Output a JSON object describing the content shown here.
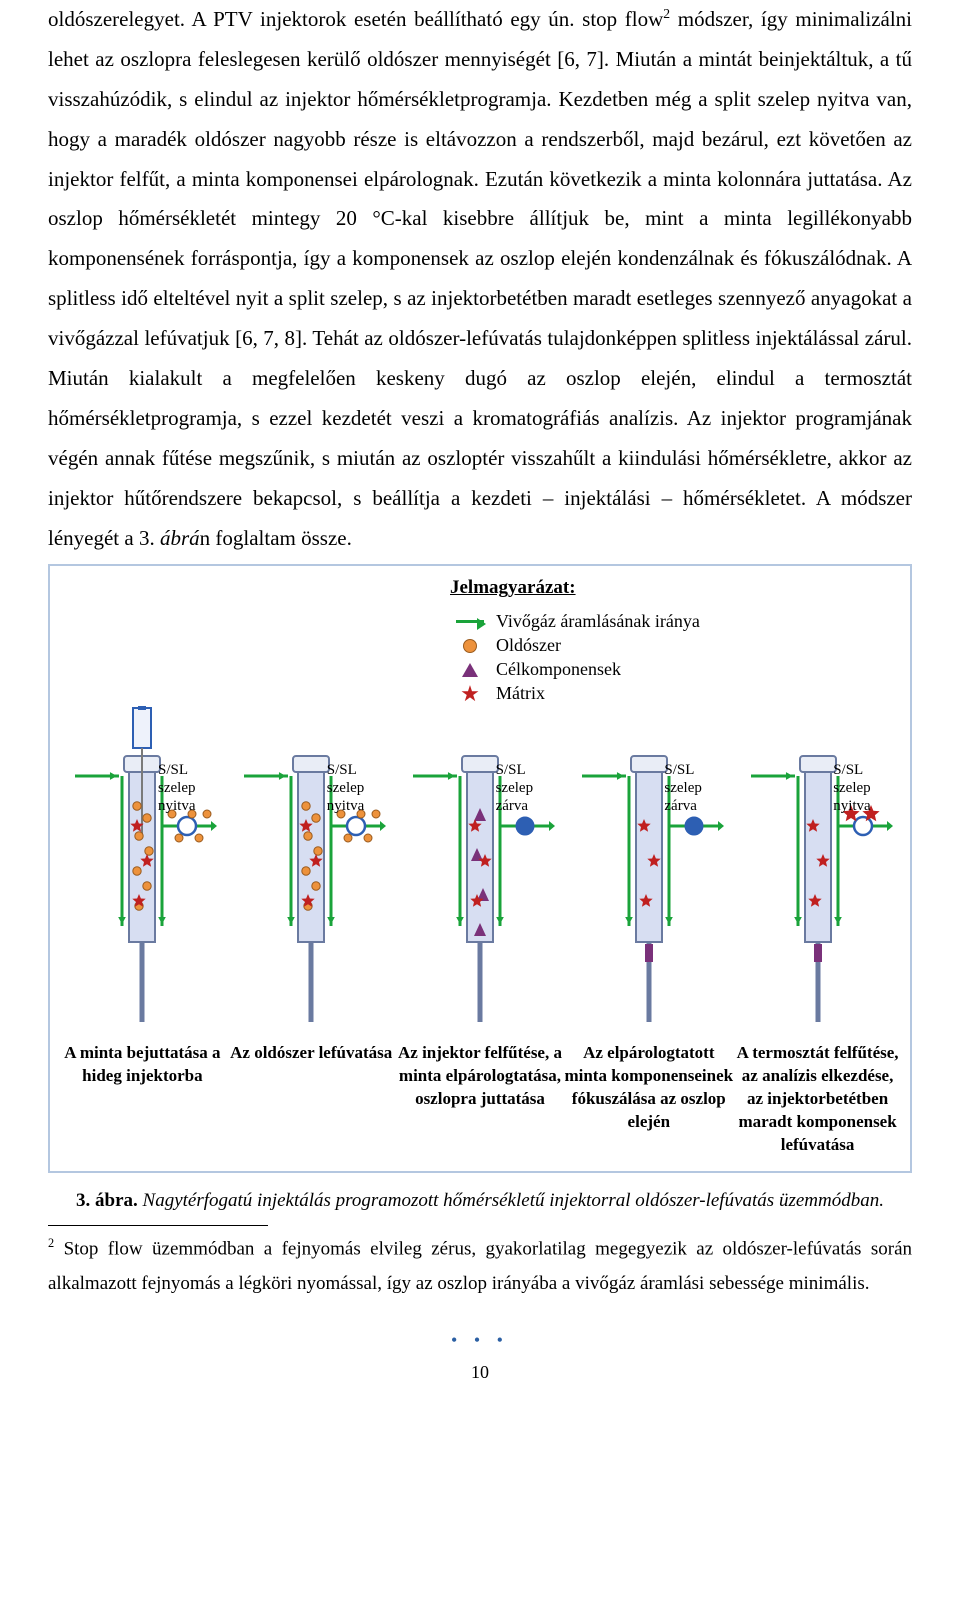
{
  "paragraph_html": "oldószerelegyet. A PTV injektorok esetén beállítható egy ún. stop flow<span class=\"sup\">2</span> módszer, így minimalizálni lehet az oszlopra feleslegesen kerülő oldószer mennyiségét [6, 7]. Miután a mintát beinjektáltuk, a tű visszahúzódik, s elindul az injektor hőmérsékletprogramja. Kezdetben még a split szelep nyitva van, hogy a maradék oldószer nagyobb része is eltávozzon a rendszerből, majd bezárul, ezt követően az injektor felfűt, a minta komponensei elpárolognak. Ezután következik a minta kolonnára juttatása. Az oszlop hőmérsékletét mintegy 20 °C-kal kisebbre állítjuk be, mint a minta legillékonyabb komponensének forráspontja, így a komponensek az oszlop elején kondenzálnak és fókuszálódnak. A splitless idő elteltével nyit a split szelep, s az injektorbetétben maradt esetleges szennyező anyagokat a vivőgázzal lefúvatjuk [6, 7, 8]. Tehát az oldószer-lefúvatás tulajdonképpen splitless injektálással zárul. Miután kialakult a megfelelően keskeny dugó az oszlop elején, elindul a termosztát hőmérsékletprogramja, s ezzel kezdetét veszi a kromatográfiás analízis. Az injektor programjának végén annak fűtése megszűnik, s miután az oszloptér visszahűlt a kiindulási hőmérsékletre, akkor az injektor hűtőrendszere bekapcsol, s beállítja a kezdeti – injektálási – hőmérsékletet. A módszer lényegét a 3. <span class=\"ital\">ábrá</span>n foglaltam össze.",
  "figure": {
    "border_color": "#b4c7e0",
    "colors": {
      "green": "#1aa33a",
      "orange_fill": "#ed923c",
      "orange_stroke": "#9a5b1e",
      "purple": "#7a317a",
      "red": "#c02020",
      "blue": "#2d5fb3",
      "steel_outline": "#6a7aa0",
      "barrel_fill": "#d7def2",
      "needle": "#7a7a7a",
      "label": "#000000"
    },
    "legend": {
      "title": "Jelmagyarázat:",
      "rows": [
        {
          "kind": "arrow",
          "label": "Vivőgáz áramlásának iránya"
        },
        {
          "kind": "dot",
          "label": "Oldószer"
        },
        {
          "kind": "tri",
          "label": "Célkomponensek"
        },
        {
          "kind": "star",
          "label": "Mátrix"
        }
      ]
    },
    "valve_labels": {
      "open": "S/SL szelep\nnyitva",
      "closed": "S/SL szelep\nzárva"
    },
    "stages": [
      {
        "valve": "open",
        "needle": true,
        "dots": true,
        "tris": false,
        "stars_tube": true,
        "plug": false,
        "caption": "A minta bejuttatása a hideg injektorba"
      },
      {
        "valve": "open",
        "needle": false,
        "dots": true,
        "tris": false,
        "stars_tube": true,
        "plug": false,
        "caption": "Az oldószer lefúvatása"
      },
      {
        "valve": "closed",
        "needle": false,
        "dots": false,
        "tris": true,
        "stars_tube": true,
        "plug": false,
        "caption": "Az injektor felfűtése, a minta elpárologtatása, oszlopra juttatása"
      },
      {
        "valve": "closed",
        "needle": false,
        "dots": false,
        "tris": false,
        "stars_tube": true,
        "plug": true,
        "caption": "Az elpárologtatott minta komponenseinek fókuszálása az oszlop elején"
      },
      {
        "valve": "open",
        "needle": false,
        "dots": false,
        "tris": false,
        "stars_tube": true,
        "plug": true,
        "caption": "A termosztát felfűtése, az analízis elkezdése, az injektorbetétben maradt komponensek lefúvatása"
      }
    ]
  },
  "figcaption": {
    "num": "3. ábra.",
    "text": " Nagytérfogatú injektálás programozott hőmérsékletű injektorral oldószer-lefúvatás üzemmódban."
  },
  "footnote": {
    "num": "2",
    "text": " Stop flow üzemmódban a fejnyomás elvileg zérus, gyakorlatilag megegyezik az oldószer-lefúvatás során alkalmazott fejnyomás a légköri nyomással, így az oszlop irányába a vivőgáz áramlási sebessége minimális."
  },
  "page_number": "10"
}
